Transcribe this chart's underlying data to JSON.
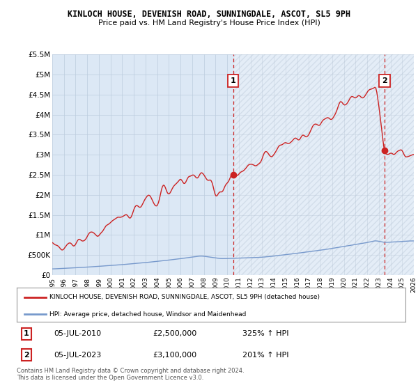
{
  "title": "KINLOCH HOUSE, DEVENISH ROAD, SUNNINGDALE, ASCOT, SL5 9PH",
  "subtitle": "Price paid vs. HM Land Registry's House Price Index (HPI)",
  "ylim": [
    0,
    5500000
  ],
  "yticks": [
    0,
    500000,
    1000000,
    1500000,
    2000000,
    2500000,
    3000000,
    3500000,
    4000000,
    4500000,
    5000000,
    5500000
  ],
  "ytick_labels": [
    "£0",
    "£500K",
    "£1M",
    "£1.5M",
    "£2M",
    "£2.5M",
    "£3M",
    "£3.5M",
    "£4M",
    "£4.5M",
    "£5M",
    "£5.5M"
  ],
  "hpi_color": "#7799cc",
  "price_color": "#cc2222",
  "marker1_year": 2010.5,
  "marker1_price": 2500000,
  "marker2_year": 2023.5,
  "marker2_price": 3100000,
  "legend_price_label": "KINLOCH HOUSE, DEVENISH ROAD, SUNNINGDALE, ASCOT, SL5 9PH (detached house)",
  "legend_hpi_label": "HPI: Average price, detached house, Windsor and Maidenhead",
  "footer": "Contains HM Land Registry data © Crown copyright and database right 2024.\nThis data is licensed under the Open Government Licence v3.0.",
  "background_color": "#ffffff",
  "grid_color": "#bbccdd",
  "plot_bg_color": "#dce8f5",
  "hatch_bg_color": "#e8f2fb"
}
